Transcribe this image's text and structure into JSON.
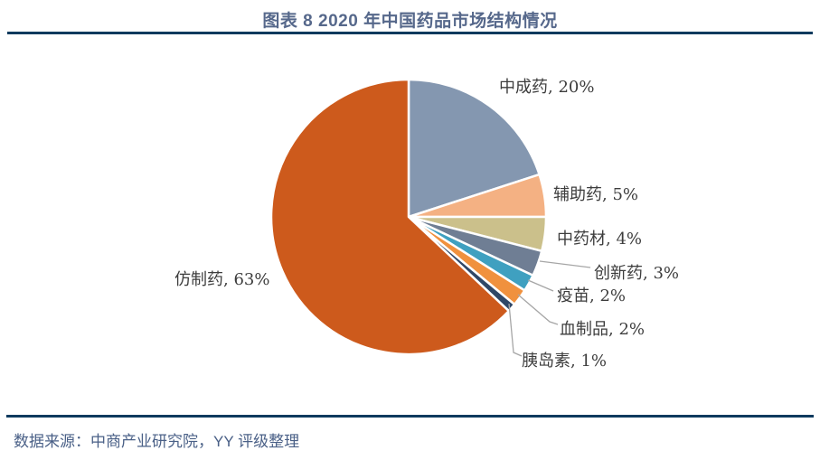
{
  "header": {
    "title": "图表 8 2020 年中国药品市场结构情况"
  },
  "footer": {
    "source": "数据来源：中商产业研究院，YY 评级整理"
  },
  "chart_data": {
    "type": "pie",
    "title": "图表 8 2020 年中国药品市场结构情况",
    "categories": [
      "中成药",
      "辅助药",
      "中药材",
      "创新药",
      "疫苗",
      "血制品",
      "胰岛素",
      "仿制药"
    ],
    "values": [
      20,
      5,
      4,
      3,
      2,
      2,
      1,
      63
    ],
    "unit": "%",
    "display_labels": [
      "中成药, 20%",
      "辅助药, 5%",
      "中药材, 4%",
      "创新药, 3%",
      "疫苗, 2%",
      "血制品, 2%",
      "胰岛素, 1%",
      "仿制药, 63%"
    ],
    "colors": [
      "#8497b0",
      "#f4b183",
      "#cbc08b",
      "#6f7e94",
      "#3fa0c0",
      "#f0913e",
      "#2f4767",
      "#cd5a1c"
    ],
    "slice_border_color": "#ffffff",
    "leader_line_color": "#a6a6a6",
    "start_angle_deg": 0,
    "direction": "clockwise",
    "legend_position": "none",
    "labels_style": "category-name, value% with leader lines for small slices"
  },
  "theme": {
    "rule_color": "#0d3a5e",
    "title_color": "#56688b",
    "footer_color": "#4a6087",
    "label_color": "#3d3d3d",
    "background": "#ffffff"
  }
}
